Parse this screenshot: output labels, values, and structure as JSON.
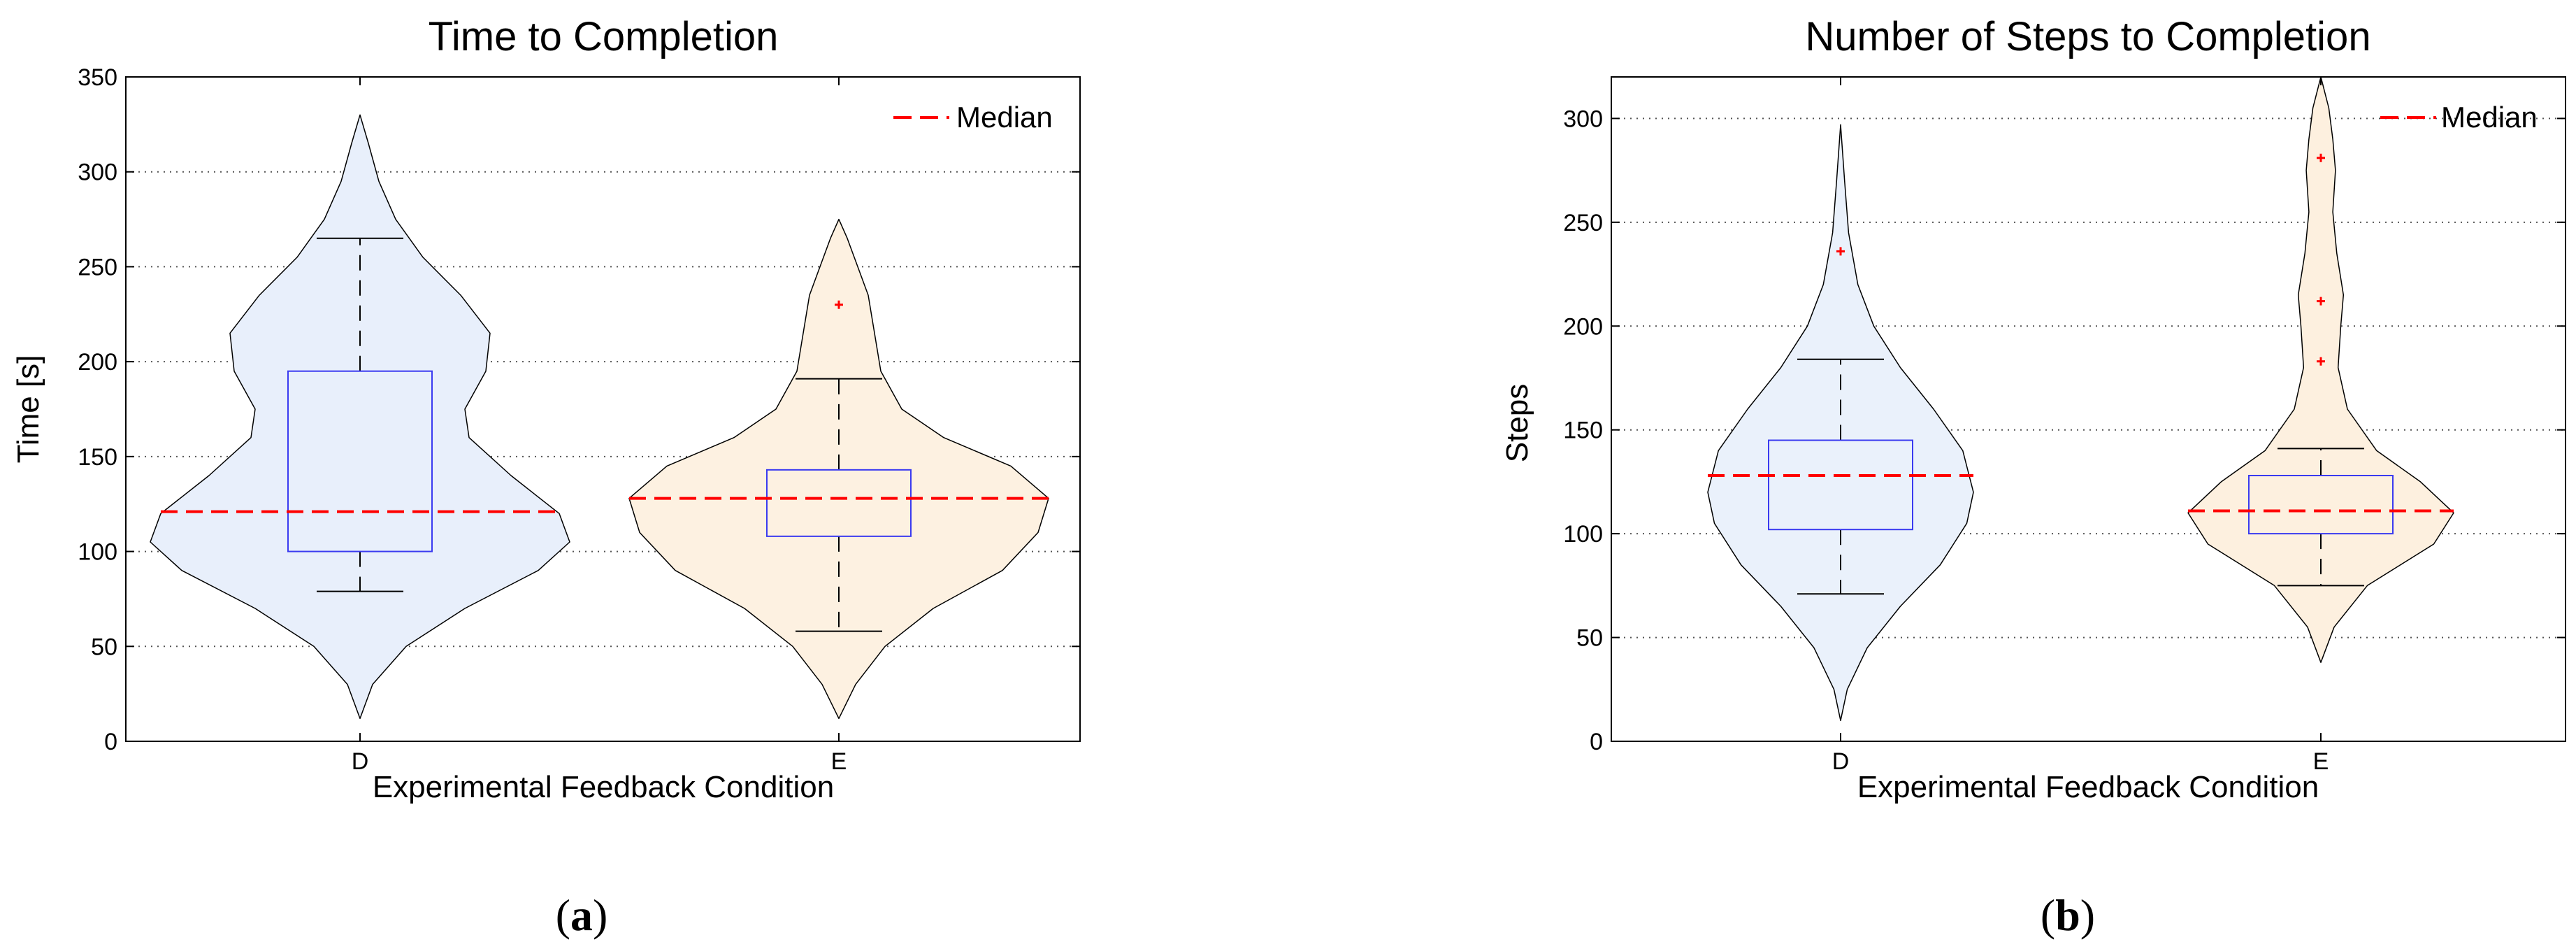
{
  "chart_data": [
    {
      "type": "violin",
      "title": "Time to Completion",
      "xlabel": "Experimental Feedback Condition",
      "ylabel": "Time [s]",
      "ylim": [
        0,
        350
      ],
      "yticks": [
        0,
        50,
        100,
        150,
        200,
        250,
        300,
        350
      ],
      "grid": "y-dotted",
      "legend": {
        "label": "Median",
        "position": "top-right"
      },
      "caption": {
        "letter": "a"
      },
      "categories": [
        "D",
        "E"
      ],
      "series": [
        {
          "category": "D",
          "fill": "#e8effb",
          "min": 79,
          "q1": 100,
          "median": 121,
          "q3": 195,
          "max": 265,
          "outliers": [],
          "density": [
            [
              12,
              0.0
            ],
            [
              30,
              0.06
            ],
            [
              50,
              0.22
            ],
            [
              70,
              0.5
            ],
            [
              90,
              0.85
            ],
            [
              105,
              1.0
            ],
            [
              120,
              0.95
            ],
            [
              140,
              0.72
            ],
            [
              160,
              0.52
            ],
            [
              175,
              0.5
            ],
            [
              195,
              0.6
            ],
            [
              215,
              0.62
            ],
            [
              235,
              0.48
            ],
            [
              255,
              0.3
            ],
            [
              275,
              0.17
            ],
            [
              295,
              0.09
            ],
            [
              315,
              0.04
            ],
            [
              330,
              0.0
            ]
          ]
        },
        {
          "category": "E",
          "fill": "#fdf1e1",
          "min": 58,
          "q1": 108,
          "median": 128,
          "q3": 143,
          "max": 191,
          "outliers": [
            230
          ],
          "density": [
            [
              12,
              0.0
            ],
            [
              30,
              0.08
            ],
            [
              50,
              0.22
            ],
            [
              70,
              0.45
            ],
            [
              90,
              0.78
            ],
            [
              110,
              0.95
            ],
            [
              128,
              1.0
            ],
            [
              145,
              0.82
            ],
            [
              160,
              0.5
            ],
            [
              175,
              0.3
            ],
            [
              195,
              0.2
            ],
            [
              215,
              0.17
            ],
            [
              235,
              0.14
            ],
            [
              250,
              0.09
            ],
            [
              265,
              0.04
            ],
            [
              275,
              0.0
            ]
          ]
        }
      ]
    },
    {
      "type": "violin",
      "title": "Number of Steps to Completion",
      "xlabel": "Experimental Feedback Condition",
      "ylabel": "Steps",
      "ylim": [
        0,
        320
      ],
      "yticks": [
        0,
        50,
        100,
        150,
        200,
        250,
        300
      ],
      "grid": "y-dotted",
      "legend": {
        "label": "Median",
        "position": "top-right"
      },
      "caption": {
        "letter": "b"
      },
      "categories": [
        "D",
        "E"
      ],
      "series": [
        {
          "category": "D",
          "fill": "#eaf1fb",
          "min": 71,
          "q1": 102,
          "median": 128,
          "q3": 145,
          "max": 184,
          "outliers": [
            236
          ],
          "density": [
            [
              10,
              0.0
            ],
            [
              25,
              0.05
            ],
            [
              45,
              0.2
            ],
            [
              65,
              0.45
            ],
            [
              85,
              0.75
            ],
            [
              105,
              0.95
            ],
            [
              120,
              1.0
            ],
            [
              140,
              0.92
            ],
            [
              160,
              0.7
            ],
            [
              180,
              0.45
            ],
            [
              200,
              0.25
            ],
            [
              220,
              0.13
            ],
            [
              245,
              0.06
            ],
            [
              270,
              0.03
            ],
            [
              297,
              0.0
            ]
          ]
        },
        {
          "category": "E",
          "fill": "#fdf0df",
          "min": 75,
          "q1": 100,
          "median": 111,
          "q3": 128,
          "max": 141,
          "outliers": [
            183,
            212,
            281
          ],
          "density": [
            [
              38,
              0.0
            ],
            [
              55,
              0.1
            ],
            [
              75,
              0.35
            ],
            [
              95,
              0.85
            ],
            [
              110,
              1.0
            ],
            [
              125,
              0.75
            ],
            [
              140,
              0.42
            ],
            [
              160,
              0.2
            ],
            [
              180,
              0.13
            ],
            [
              200,
              0.15
            ],
            [
              215,
              0.17
            ],
            [
              235,
              0.12
            ],
            [
              255,
              0.09
            ],
            [
              275,
              0.11
            ],
            [
              290,
              0.09
            ],
            [
              305,
              0.06
            ],
            [
              320,
              0.0
            ]
          ]
        }
      ]
    }
  ]
}
